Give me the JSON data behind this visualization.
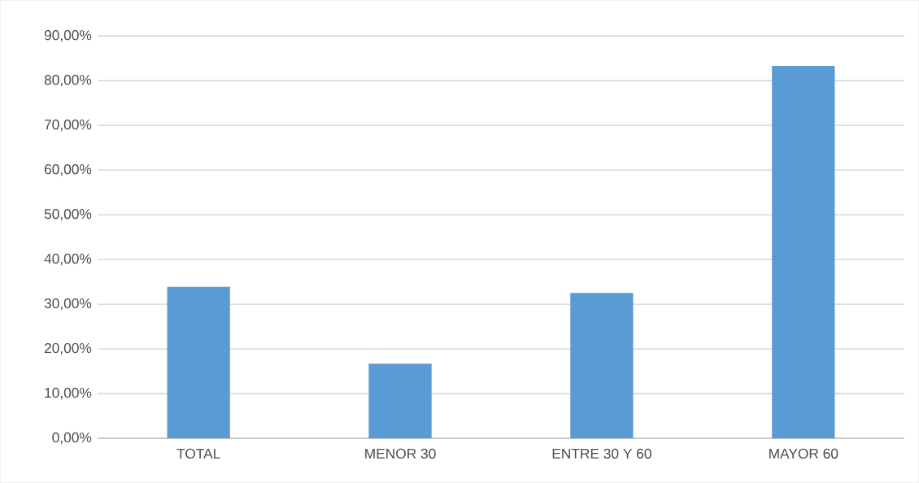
{
  "chart_data": {
    "type": "bar",
    "categories": [
      "TOTAL",
      "MENOR 30",
      "ENTRE 30 Y 60",
      "MAYOR 60"
    ],
    "values": [
      33.9,
      16.7,
      32.5,
      83.3
    ],
    "color": "#5b9bd5",
    "ylim": [
      0,
      90
    ],
    "yticks": [
      {
        "value": 0,
        "label": "0,00%"
      },
      {
        "value": 10,
        "label": "10,00%"
      },
      {
        "value": 20,
        "label": "20,00%"
      },
      {
        "value": 30,
        "label": "30,00%"
      },
      {
        "value": 40,
        "label": "40,00%"
      },
      {
        "value": 50,
        "label": "50,00%"
      },
      {
        "value": 60,
        "label": "60,00%"
      },
      {
        "value": 70,
        "label": "70,00%"
      },
      {
        "value": 80,
        "label": "80,00%"
      },
      {
        "value": 90,
        "label": "90,00%"
      }
    ],
    "grid": "y"
  }
}
